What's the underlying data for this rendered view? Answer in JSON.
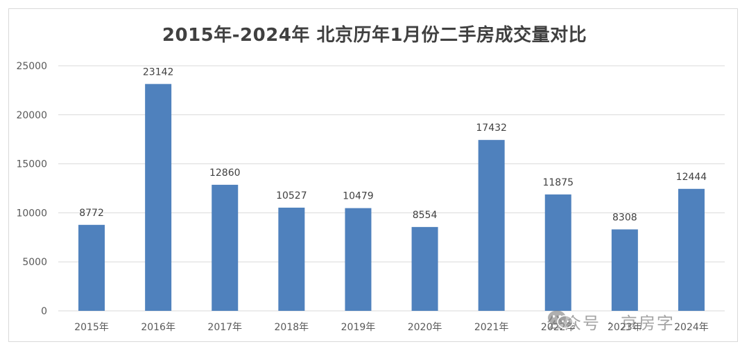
{
  "chart_data": {
    "type": "bar",
    "title": "2015年-2024年 北京历年1月份二手房成交量对比",
    "categories": [
      "2015年",
      "2016年",
      "2017年",
      "2018年",
      "2019年",
      "2020年",
      "2021年",
      "2022年",
      "2023年",
      "2024年"
    ],
    "values": [
      8772,
      23142,
      12860,
      10527,
      10479,
      8554,
      17432,
      11875,
      8308,
      12444
    ],
    "ylim": [
      0,
      25000
    ],
    "yticks": [
      0,
      5000,
      10000,
      15000,
      20000,
      25000
    ],
    "grid": true,
    "legend": "none",
    "colors": {
      "bar": "#4f81bd",
      "grid": "#d9d9d9",
      "axis_text": "#595959",
      "label_text": "#404040"
    }
  },
  "watermark": {
    "icon": "wechat-icon",
    "text": "公众号 · 京房字"
  }
}
